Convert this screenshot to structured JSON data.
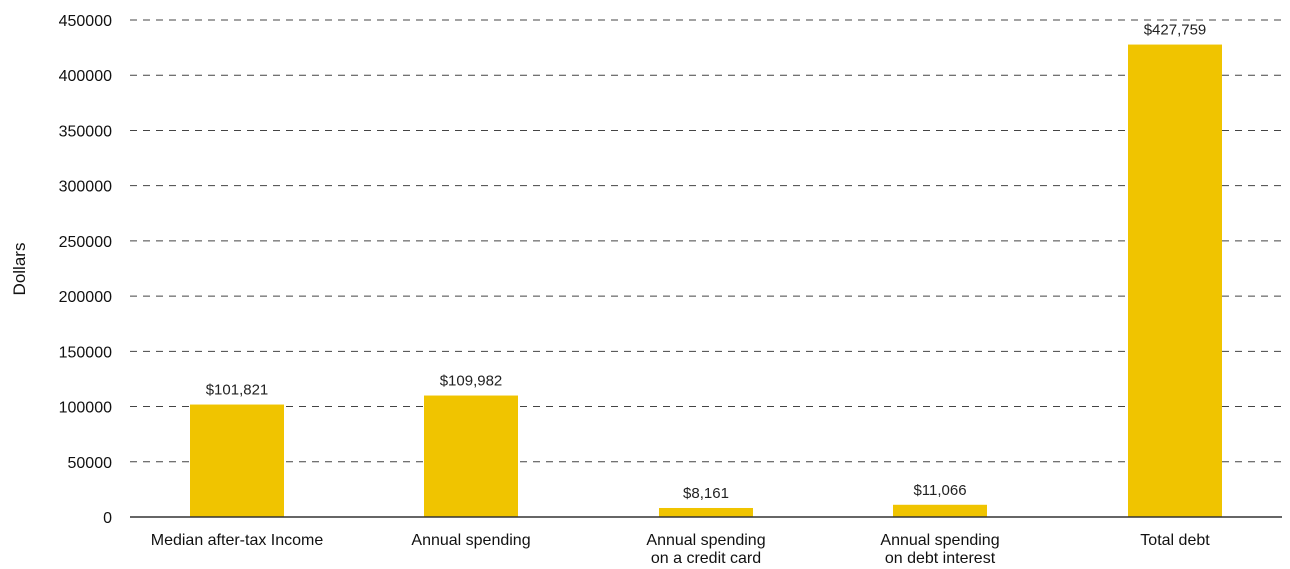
{
  "chart_data": {
    "type": "bar",
    "title": "",
    "xlabel": "",
    "ylabel": "Dollars",
    "ylim": [
      0,
      450000
    ],
    "yticks": [
      0,
      50000,
      100000,
      150000,
      200000,
      250000,
      300000,
      350000,
      400000,
      450000
    ],
    "grid": true,
    "categories": [
      [
        "Median after-tax Income"
      ],
      [
        "Annual spending"
      ],
      [
        "Annual spending",
        "on a credit card"
      ],
      [
        "Annual spending",
        "on debt interest"
      ],
      [
        "Total debt"
      ]
    ],
    "values": [
      101821,
      109982,
      8161,
      11066,
      427759
    ],
    "data_labels": [
      "$101,821",
      "$109,982",
      "$8,161",
      "$11,066",
      "$427,759"
    ],
    "colors": {
      "bar": "#F0C400",
      "grid": "#444444"
    }
  }
}
